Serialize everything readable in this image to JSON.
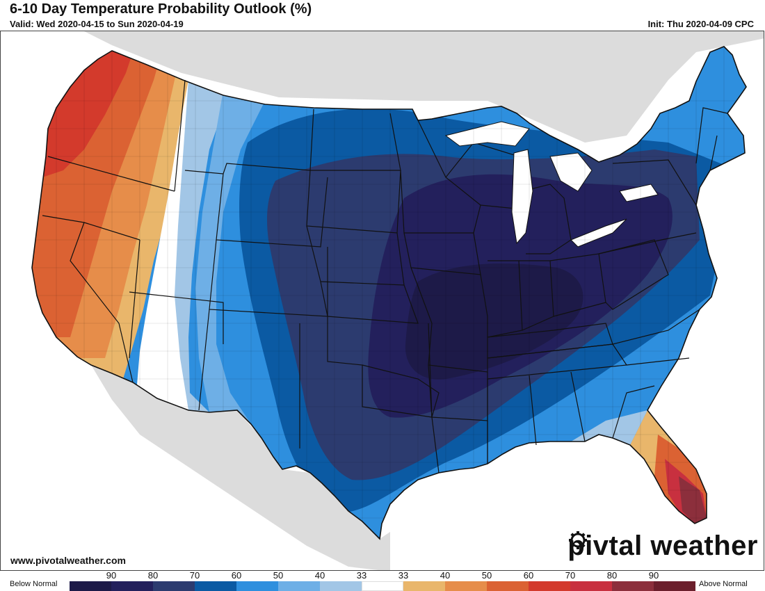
{
  "header": {
    "title": "6-10 Day Temperature Probability Outlook (%)",
    "valid": "Valid: Wed 2020-04-15 to Sun 2020-04-19",
    "init": "Init: Thu 2020-04-09 CPC"
  },
  "footer": {
    "website": "www.pivotalweather.com",
    "brand_before": "piv",
    "brand_after": "tal weather",
    "brand_icon": "gear-icon"
  },
  "legend": {
    "below_label": "Below Normal",
    "above_label": "Above Normal",
    "ticks": [
      "90",
      "80",
      "70",
      "60",
      "50",
      "40",
      "33",
      "33",
      "40",
      "50",
      "60",
      "70",
      "80",
      "90"
    ],
    "swatch_colors": [
      "#1d1a48",
      "#23205c",
      "#2c3b6f",
      "#0b5aa3",
      "#2e8fde",
      "#6eafe6",
      "#a2c6e6",
      "#ffffff",
      "#e9b66b",
      "#e68d4a",
      "#db6233",
      "#d33a2c",
      "#c8303f",
      "#8c2f3c",
      "#6b1f2c"
    ]
  },
  "colors": {
    "land_outside": "#dcdcdc",
    "water": "#ffffff",
    "state_border": "#111111"
  }
}
